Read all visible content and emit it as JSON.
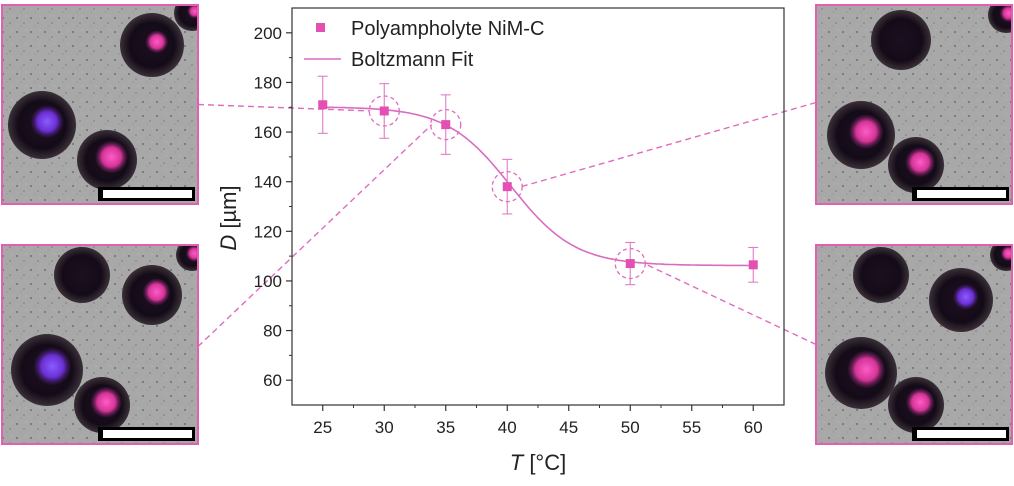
{
  "chart_data": {
    "type": "scatter",
    "series": [
      {
        "name": "Polyampholyte NiM-C",
        "x": [
          25,
          30,
          35,
          40,
          50,
          60
        ],
        "values": [
          171,
          168.5,
          163,
          138,
          107,
          106.5
        ],
        "error": [
          11.5,
          11,
          12,
          11,
          8.5,
          7
        ],
        "color": "#e44fb2",
        "marker": "square"
      },
      {
        "name": "Boltzmann Fit",
        "type": "line",
        "color": "#d96cc0",
        "fit": {
          "A1": 170.2,
          "A2": 106.2,
          "x0": 40.3,
          "dx": 2.6
        }
      }
    ],
    "highlighted_x": [
      30,
      35,
      40,
      50
    ],
    "xlabel_italic": "T",
    "xlabel_unit": " [°C]",
    "ylabel_italic": "D",
    "ylabel_unit": " [µm]",
    "xlim": [
      22.5,
      62.5
    ],
    "ylim": [
      50,
      210
    ],
    "xticks": [
      25,
      30,
      35,
      40,
      45,
      50,
      55,
      60
    ],
    "yticks": [
      60,
      80,
      100,
      120,
      140,
      160,
      180,
      200
    ],
    "legend_position": "top-left",
    "grid": false
  },
  "micrographs": [
    {
      "id": "panel-top-left",
      "temperature": 30
    },
    {
      "id": "panel-bottom-left",
      "temperature": 35
    },
    {
      "id": "panel-top-right",
      "temperature": 40
    },
    {
      "id": "panel-bottom-right",
      "temperature": 50
    }
  ],
  "colors": {
    "frame": "#e35fb0",
    "dash": "#de6cbf",
    "marker": "#e44fb2"
  }
}
